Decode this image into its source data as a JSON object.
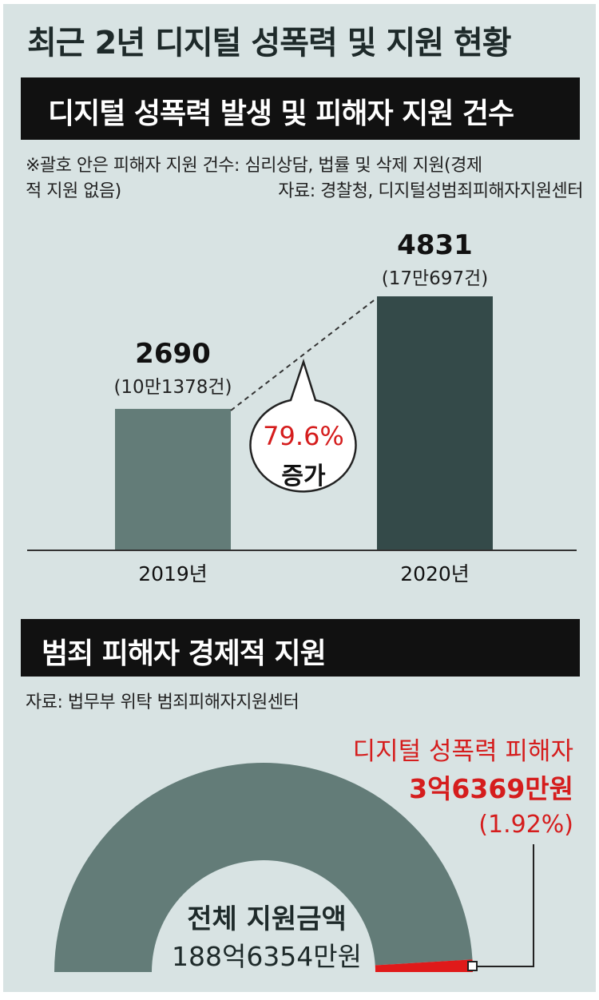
{
  "title": "최근 2년 디지털 성폭력 및 지원 현황",
  "section1": {
    "heading": "디지털 성폭력 발생 및 피해자 지원 건수",
    "note_line1": "※괄호 안은 피해자 지원 건수: 심리상담, 법률 및 삭제 지원(경제",
    "note_line2": "적 지원 없음)",
    "source": "자료: 경찰청, 디지털성범죄피해자지원센터"
  },
  "section2": {
    "heading": "범죄 피해자 경제적 지원",
    "source": "자료: 법무부 위탁 범죄피해자지원센터"
  },
  "chart_data": [
    {
      "type": "bar",
      "categories": [
        "2019년",
        "2020년"
      ],
      "values": [
        2690,
        4831
      ],
      "value_labels": [
        "2690",
        "4831"
      ],
      "support_labels": [
        "(10만1378건)",
        "(17만697건)"
      ],
      "support_counts": [
        101378,
        170697
      ],
      "ylim": [
        0,
        4831
      ],
      "annotation": {
        "percent": "79.6%",
        "text": "증가"
      },
      "colors": {
        "bar_2019": "#637c78",
        "bar_2020": "#344a49",
        "percent": "#d51d1d"
      }
    },
    {
      "type": "pie",
      "total_label": "전체 지원금액",
      "total_value": "188억6354만원",
      "highlight_label": "디지털 성폭력 피해자",
      "highlight_value": "3억6369만원",
      "highlight_share": "(1.92%)",
      "share_percent": 1.92,
      "colors": {
        "total": "#637c78",
        "highlight": "#e01a1a"
      }
    }
  ]
}
